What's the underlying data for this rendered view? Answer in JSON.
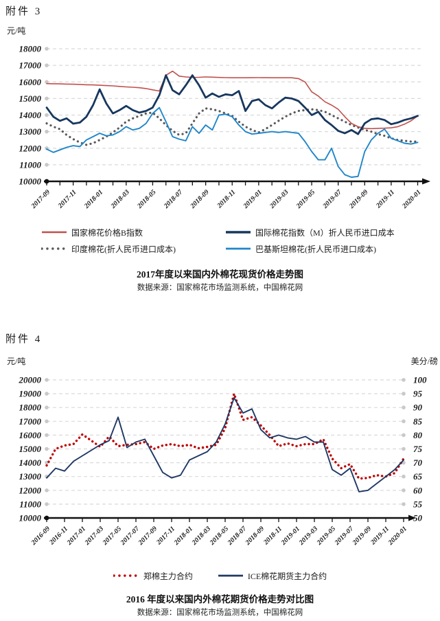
{
  "page": {
    "attachment_3_label": "附件 3",
    "attachment_4_label": "附件 4"
  },
  "palette": {
    "grid": "#D9D9D9",
    "grid_dot": "#C9C9C9",
    "axis": "#111111"
  },
  "chart_data": [
    {
      "name": "spot-price-chart",
      "type": "line",
      "title": "2017年度以来国内外棉花现货价格走势图",
      "source": "数据来源：国家棉花市场监测系统，中国棉花网",
      "grid": true,
      "legend_position": "bottom",
      "y_axis": {
        "unit": "元/吨",
        "min": 10000,
        "max": 18000,
        "step": 1000
      },
      "x_axis": {
        "start": "2017-09",
        "end": "2020-01",
        "total_months": 28,
        "label_every_months": 2,
        "tick_labels": [
          "2017-09",
          "2017-11",
          "2018-01",
          "2018-03",
          "2018-05",
          "2018-07",
          "2018-09",
          "2018-11",
          "2019-01",
          "2019-03",
          "2019-05",
          "2019-07",
          "2019-09",
          "2019-11",
          "2020-01"
        ]
      },
      "series": [
        {
          "name": "国家棉花价格B指数",
          "color": "#C0504D",
          "style": "line",
          "width": 1.6,
          "axis": "left",
          "step_months": 0.5,
          "values": [
            15900,
            15890,
            15880,
            15870,
            15860,
            15850,
            15830,
            15820,
            15800,
            15780,
            15760,
            15730,
            15700,
            15680,
            15650,
            15600,
            15520,
            15450,
            16400,
            16650,
            16350,
            16300,
            16270,
            16280,
            16300,
            16290,
            16270,
            16260,
            16250,
            16250,
            16250,
            16255,
            16260,
            16255,
            16250,
            16250,
            16250,
            16250,
            16200,
            16000,
            15400,
            15150,
            14800,
            14600,
            14350,
            13900,
            13500,
            13300,
            13200,
            13180,
            13200,
            13210,
            13230,
            13300,
            13450,
            13650,
            13950
          ]
        },
        {
          "name": "国际棉花指数（M）折人民币进口成本",
          "color": "#17375E",
          "style": "line",
          "width": 2.8,
          "axis": "left",
          "step_months": 0.5,
          "values": [
            14450,
            13900,
            13650,
            13800,
            13480,
            13550,
            13900,
            14600,
            15550,
            14700,
            14100,
            14300,
            14550,
            14300,
            14150,
            14250,
            14450,
            15200,
            16400,
            15500,
            15250,
            15800,
            16400,
            15800,
            15050,
            15300,
            15100,
            15250,
            15200,
            15450,
            14250,
            14850,
            14950,
            14600,
            14400,
            14750,
            15050,
            15000,
            14850,
            14450,
            14000,
            14200,
            13700,
            13400,
            13050,
            12900,
            13100,
            12850,
            13500,
            13750,
            13800,
            13700,
            13450,
            13550,
            13700,
            13800,
            13950
          ]
        },
        {
          "name": "印度棉花(折人民币进口成本)",
          "color": "#595959",
          "style": "dotted",
          "width": 3.2,
          "dot_gap": 6.5,
          "axis": "left",
          "step_months": 0.5,
          "values": [
            13500,
            13300,
            13150,
            12800,
            12550,
            12350,
            12200,
            12300,
            12500,
            12700,
            12950,
            13250,
            13600,
            13800,
            13950,
            14100,
            14150,
            13800,
            13400,
            13050,
            12800,
            12900,
            13500,
            14100,
            14400,
            14350,
            14250,
            14100,
            13950,
            13600,
            13300,
            13100,
            12950,
            13150,
            13400,
            13650,
            13900,
            14100,
            14250,
            14300,
            14350,
            14300,
            14200,
            14000,
            13800,
            13600,
            13400,
            13250,
            13100,
            13000,
            12850,
            12750,
            12600,
            12500,
            12450,
            12400,
            12400
          ]
        },
        {
          "name": "巴基斯坦棉花(折人民币进口成本)",
          "color": "#1F86C9",
          "style": "line",
          "width": 1.9,
          "axis": "left",
          "step_months": 0.5,
          "values": [
            11950,
            11750,
            11900,
            12050,
            12150,
            12100,
            12500,
            12700,
            12900,
            12750,
            12800,
            13000,
            13300,
            13100,
            13200,
            13500,
            14100,
            14450,
            13600,
            12700,
            12550,
            12450,
            13300,
            12900,
            13400,
            13100,
            14000,
            14050,
            13900,
            13400,
            13000,
            12850,
            12900,
            12950,
            13000,
            12950,
            13000,
            12950,
            12900,
            12400,
            11800,
            11300,
            11300,
            12000,
            10900,
            10400,
            10250,
            10300,
            11800,
            12500,
            12900,
            13150,
            12600,
            12450,
            12300,
            12250,
            12350
          ]
        }
      ]
    },
    {
      "name": "futures-price-chart",
      "type": "line",
      "title": "2016 年度以来国内外棉花期货价格走势对比图",
      "source": "数据来源：国家棉花市场监测系统，中国棉花网",
      "grid": true,
      "legend_position": "bottom",
      "y_axis": {
        "unit": "元/吨",
        "min": 10000,
        "max": 20000,
        "step": 1000
      },
      "y_axis_right": {
        "unit": "美分/磅",
        "min": 50,
        "max": 100,
        "step": 5
      },
      "x_axis": {
        "start": "2016-09",
        "end": "2020-01",
        "total_months": 40,
        "label_every_months": 2,
        "tick_labels": [
          "2016-09",
          "2016-11",
          "2017-01",
          "2017-03",
          "2017-05",
          "2017-07",
          "2017-09",
          "2017-11",
          "2018-01",
          "2018-03",
          "2018-05",
          "2018-07",
          "2018-09",
          "2018-11",
          "2019-01",
          "2019-03",
          "2019-05",
          "2019-07",
          "2019-09",
          "2019-11",
          "2020-01"
        ]
      },
      "series": [
        {
          "name": "郑棉主力合约",
          "color": "#C00000",
          "style": "dotted",
          "width": 3.4,
          "dot_gap": 6,
          "axis": "left",
          "step_months": 1,
          "values": [
            13800,
            15000,
            15250,
            15350,
            16050,
            15600,
            15150,
            15900,
            15200,
            15300,
            15350,
            15500,
            15000,
            15250,
            15350,
            15200,
            15300,
            15050,
            15150,
            15300,
            16500,
            19000,
            17100,
            17300,
            16700,
            16000,
            15200,
            15400,
            15200,
            15350,
            15350,
            15700,
            14300,
            13600,
            13900,
            12850,
            12900,
            13100,
            13000,
            13250,
            14300
          ]
        },
        {
          "name": "ICE棉花期货主力合约",
          "color": "#1F3864",
          "style": "line",
          "width": 1.9,
          "axis": "right",
          "step_months": 1,
          "values": [
            64.5,
            68,
            67,
            70.5,
            72.5,
            74.5,
            76.5,
            78,
            86.5,
            75.5,
            77.5,
            78.5,
            72.5,
            66.5,
            64.5,
            65.5,
            71,
            72.5,
            74,
            77.5,
            84,
            93.5,
            88,
            89.5,
            82,
            79,
            80,
            79,
            78.5,
            79.5,
            77.5,
            77.5,
            67.5,
            65.5,
            68,
            59.5,
            60,
            62.5,
            65,
            67.5,
            71
          ]
        }
      ]
    }
  ]
}
